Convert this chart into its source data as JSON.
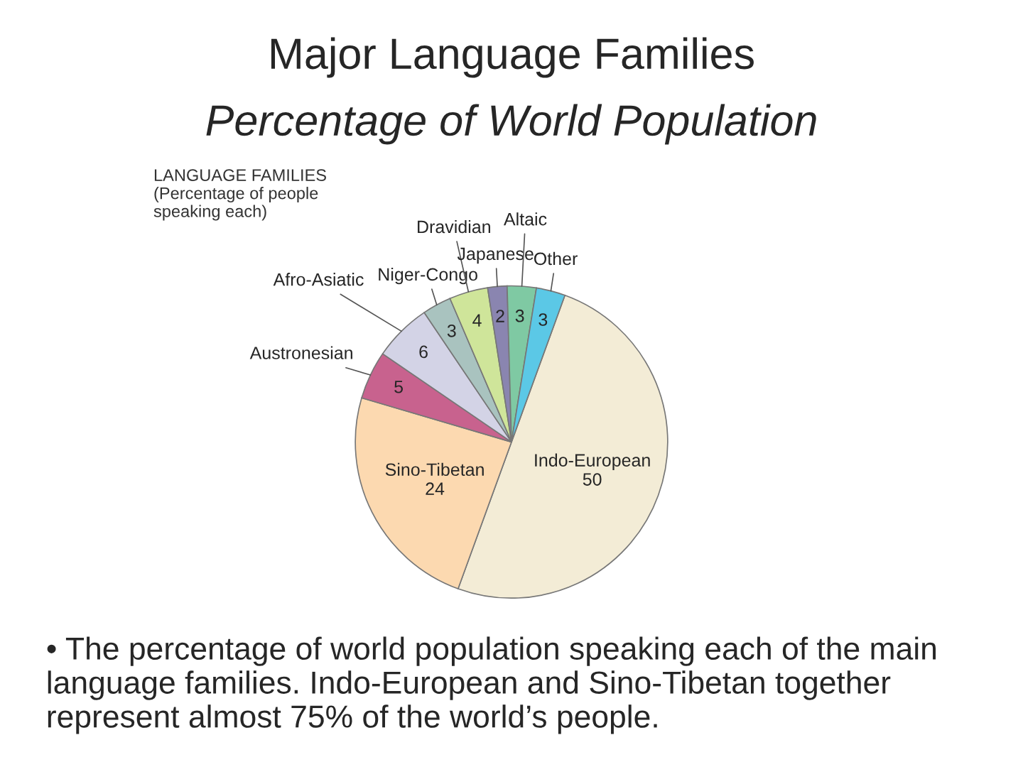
{
  "chart_data": {
    "type": "pie",
    "title": "Major Language Families",
    "subtitle": "Percentage of World Population",
    "categories": [
      "Indo-European",
      "Sino-Tibetan",
      "Austronesian",
      "Afro-Asiatic",
      "Niger-Congo",
      "Dravidian",
      "Japanese",
      "Altaic",
      "Other"
    ],
    "values": [
      50,
      24,
      5,
      6,
      3,
      4,
      2,
      3,
      3
    ],
    "colors": [
      "#f3ecd6",
      "#fcd9b0",
      "#c8628e",
      "#d3d3e6",
      "#a9c3bf",
      "#cfe59a",
      "#8a85b0",
      "#7fc9a3",
      "#5bc8e6"
    ],
    "data_labels": true,
    "annotations": [
      "LANGUAGE FAMILIES\n(Percentage of people\nspeaking each)",
      "• The percentage of world population speaking each of the main language families. Indo-European and Sino-Tibetan together represent almost 75% of the world’s people."
    ]
  }
}
